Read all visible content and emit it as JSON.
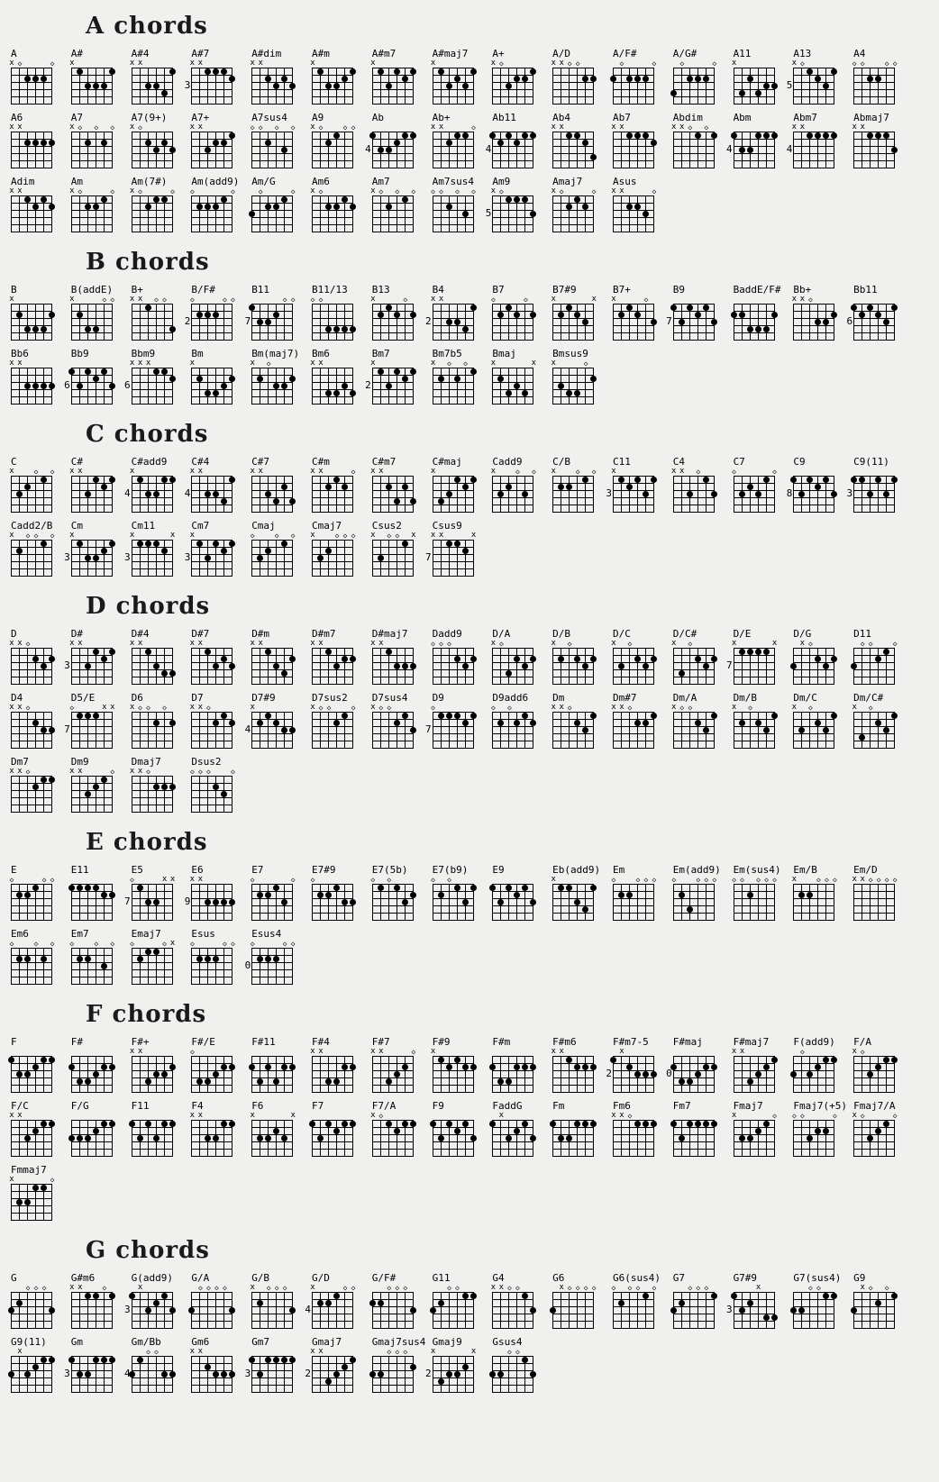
{
  "page": {
    "background_color": "#f0f0ef",
    "ink_color": "#000000",
    "muted_string_symbol": "x",
    "open_string_symbol": "◇",
    "strings_per_diagram": 6,
    "frets_per_diagram": 5
  },
  "sections": [
    {
      "title": "A chords",
      "rows": [
        [
          {
            "n": "A",
            "f": "x02220"
          },
          {
            "n": "A#",
            "f": "x13331"
          },
          {
            "n": "A#4",
            "f": "xx3341"
          },
          {
            "n": "A#7",
            "b": "3",
            "f": "xx1112"
          },
          {
            "n": "A#dim",
            "f": "xx2323"
          },
          {
            "n": "A#m",
            "f": "x13321"
          },
          {
            "n": "A#m7",
            "f": "x13121"
          },
          {
            "n": "A#maj7",
            "f": "x13231"
          },
          {
            "n": "A+",
            "f": "x03221"
          },
          {
            "n": "A/D",
            "f": "xx0022"
          },
          {
            "n": "A/F#",
            "f": "202220"
          },
          {
            "n": "A/G#",
            "f": "402220"
          },
          {
            "n": "A11",
            "f": "x42433"
          },
          {
            "n": "A13",
            "b": "5",
            "f": "x01231"
          },
          {
            "n": "A4",
            "f": "002200"
          }
        ],
        [
          {
            "n": "A6",
            "f": "xx2222"
          },
          {
            "n": "A7",
            "f": "x02020"
          },
          {
            "n": "A7(9+)",
            "f": "x02323"
          },
          {
            "n": "A7+",
            "f": "xx3221"
          },
          {
            "n": "A7sus4",
            "f": "002030"
          },
          {
            "n": "A9",
            "f": "x02100"
          },
          {
            "n": "Ab",
            "b": "4",
            "f": "133211"
          },
          {
            "n": "Ab+",
            "f": "xx2110"
          },
          {
            "n": "Ab11",
            "b": "4",
            "f": "121211"
          },
          {
            "n": "Ab4",
            "f": "xx1124"
          },
          {
            "n": "Ab7",
            "f": "xx1112"
          },
          {
            "n": "Abdim",
            "f": "xx0101"
          },
          {
            "n": "Abm",
            "b": "4",
            "f": "133111"
          },
          {
            "n": "Abm7",
            "b": "4",
            "f": "xx1111"
          },
          {
            "n": "Abmaj7",
            "f": "xx1113"
          }
        ],
        [
          {
            "n": "Adim",
            "f": "xx1212"
          },
          {
            "n": "Am",
            "f": "x02210"
          },
          {
            "n": "Am(7#)",
            "f": "x02110"
          },
          {
            "n": "Am(add9)",
            "f": "022210"
          },
          {
            "n": "Am/G",
            "f": "302210"
          },
          {
            "n": "Am6",
            "f": "x02212"
          },
          {
            "n": "Am7",
            "f": "x02010"
          },
          {
            "n": "Am7sus4",
            "f": "002030"
          },
          {
            "n": "Am9",
            "b": "5",
            "f": "x01113"
          },
          {
            "n": "Amaj7",
            "f": "x02120"
          },
          {
            "n": "Asus",
            "f": "xx2230"
          }
        ]
      ]
    },
    {
      "title": "B chords",
      "rows": [
        [
          {
            "n": "B",
            "f": "x24442"
          },
          {
            "n": "B(addE)",
            "f": "x24400"
          },
          {
            "n": "B+",
            "f": "xx1004"
          },
          {
            "n": "B/F#",
            "b": "2",
            "f": "022200"
          },
          {
            "n": "B11",
            "b": "7",
            "f": "133200"
          },
          {
            "n": "B11/13",
            "f": "004444"
          },
          {
            "n": "B13",
            "f": "x21202"
          },
          {
            "n": "B4",
            "b": "2",
            "f": "xx3341"
          },
          {
            "n": "B7",
            "f": "021202"
          },
          {
            "n": "B7#9",
            "f": "x2123x"
          },
          {
            "n": "B7+",
            "f": "x21203"
          },
          {
            "n": "B9",
            "b": "7",
            "f": "131213"
          },
          {
            "n": "BaddE/F#",
            "f": "224442"
          },
          {
            "n": "Bb+",
            "f": "xx0332"
          },
          {
            "n": "Bb11",
            "b": "6",
            "f": "121231"
          }
        ],
        [
          {
            "n": "Bb6",
            "f": "xx3333"
          },
          {
            "n": "Bb9",
            "b": "6",
            "f": "131213"
          },
          {
            "n": "Bbm9",
            "b": "6",
            "f": "xxx112"
          },
          {
            "n": "Bm",
            "f": "x24432"
          },
          {
            "n": "Bm(maj7)",
            "f": "x20332"
          },
          {
            "n": "Bm6",
            "f": "xx4434"
          },
          {
            "n": "Bm7",
            "b": "2",
            "f": "x13121"
          },
          {
            "n": "Bm7b5",
            "f": "x20201"
          },
          {
            "n": "Bmaj",
            "f": "x2434x"
          },
          {
            "n": "Bmsus9",
            "f": "x34402"
          }
        ]
      ]
    },
    {
      "title": "C chords",
      "rows": [
        [
          {
            "n": "C",
            "f": "x32010"
          },
          {
            "n": "C#",
            "f": "xx3121"
          },
          {
            "n": "C#add9",
            "b": "4",
            "f": "x13311"
          },
          {
            "n": "C#4",
            "b": "4",
            "f": "xx3341"
          },
          {
            "n": "C#7",
            "f": "xx3424"
          },
          {
            "n": "C#m",
            "f": "xx2120"
          },
          {
            "n": "C#m7",
            "f": "xx2424"
          },
          {
            "n": "C#maj",
            "f": "x43121"
          },
          {
            "n": "Cadd9",
            "f": "x32030"
          },
          {
            "n": "C/B",
            "f": "x22010"
          },
          {
            "n": "C11",
            "b": "3",
            "f": "x12131"
          },
          {
            "n": "C4",
            "f": "xx3013"
          },
          {
            "n": "C7",
            "f": "032310"
          },
          {
            "n": "C9",
            "b": "8",
            "f": "131213"
          },
          {
            "n": "C9(11)",
            "b": "3",
            "f": "113131"
          }
        ],
        [
          {
            "n": "Cadd2/B",
            "f": "x20010"
          },
          {
            "n": "Cm",
            "b": "3",
            "f": "x13321"
          },
          {
            "n": "Cm11",
            "b": "3",
            "f": "x1112x"
          },
          {
            "n": "Cm7",
            "b": "3",
            "f": "x13121"
          },
          {
            "n": "Cmaj",
            "f": "032010"
          },
          {
            "n": "Cmaj7",
            "f": "x32000"
          },
          {
            "n": "Csus2",
            "f": "x3001x"
          },
          {
            "n": "Csus9",
            "b": "7",
            "f": "xx112x"
          }
        ]
      ]
    },
    {
      "title": "D chords",
      "rows": [
        [
          {
            "n": "D",
            "f": "xx0232"
          },
          {
            "n": "D#",
            "b": "3",
            "f": "xx3121"
          },
          {
            "n": "D#4",
            "f": "xx1344"
          },
          {
            "n": "D#7",
            "f": "xx1323"
          },
          {
            "n": "D#m",
            "f": "xx1342"
          },
          {
            "n": "D#m7",
            "f": "xx1322"
          },
          {
            "n": "D#maj7",
            "f": "xx1333"
          },
          {
            "n": "Dadd9",
            "f": "000232"
          },
          {
            "n": "D/A",
            "f": "x04232"
          },
          {
            "n": "D/B",
            "f": "x20232"
          },
          {
            "n": "D/C",
            "f": "x30232"
          },
          {
            "n": "D/C#",
            "f": "x40232"
          },
          {
            "n": "D/E",
            "b": "7",
            "f": "x1111x"
          },
          {
            "n": "D/G",
            "f": "3x0232"
          },
          {
            "n": "D11",
            "f": "300210"
          }
        ],
        [
          {
            "n": "D4",
            "f": "xx0233"
          },
          {
            "n": "D5/E",
            "b": "7",
            "f": "0111xx"
          },
          {
            "n": "D6",
            "f": "x00202"
          },
          {
            "n": "D7",
            "f": "xx0212"
          },
          {
            "n": "D7#9",
            "b": "4",
            "f": "x21233"
          },
          {
            "n": "D7sus2",
            "f": "x00210"
          },
          {
            "n": "D7sus4",
            "f": "x00213"
          },
          {
            "n": "D9",
            "b": "7",
            "f": "011121"
          },
          {
            "n": "D9add6",
            "f": "020212"
          },
          {
            "n": "Dm",
            "f": "xx0231"
          },
          {
            "n": "Dm#7",
            "f": "xx0221"
          },
          {
            "n": "Dm/A",
            "f": "x00231"
          },
          {
            "n": "Dm/B",
            "f": "x20231"
          },
          {
            "n": "Dm/C",
            "f": "x30231"
          },
          {
            "n": "Dm/C#",
            "f": "x40231"
          }
        ],
        [
          {
            "n": "Dm7",
            "f": "xx0211"
          },
          {
            "n": "Dm9",
            "f": "xx3210"
          },
          {
            "n": "Dmaj7",
            "f": "xx0222"
          },
          {
            "n": "Dsus2",
            "f": "000230"
          }
        ]
      ]
    },
    {
      "title": "E chords",
      "rows": [
        [
          {
            "n": "E",
            "f": "022100"
          },
          {
            "n": "E11",
            "f": "111122"
          },
          {
            "n": "E5",
            "b": "7",
            "f": "0133xx"
          },
          {
            "n": "E6",
            "b": "9",
            "f": "xx3333"
          },
          {
            "n": "E7",
            "f": "022130"
          },
          {
            "n": "E7#9",
            "f": "022133"
          },
          {
            "n": "E7(5b)",
            "f": "010132"
          },
          {
            "n": "E7(b9)",
            "f": "020131"
          },
          {
            "n": "E9",
            "f": "131213"
          },
          {
            "n": "Eb(add9)",
            "f": "x11341"
          },
          {
            "n": "Em",
            "f": "022000"
          },
          {
            "n": "Em(add9)",
            "f": "024000"
          },
          {
            "n": "Em(sus4)",
            "f": "002000"
          },
          {
            "n": "Em/B",
            "f": "x22000"
          },
          {
            "n": "Em/D",
            "f": "xx0000"
          }
        ],
        [
          {
            "n": "Em6",
            "f": "022020"
          },
          {
            "n": "Em7",
            "f": "022030"
          },
          {
            "n": "Emaj7",
            "f": "02110x"
          },
          {
            "n": "Esus",
            "f": "022200"
          },
          {
            "n": "Esus4",
            "b": "0",
            "f": "022200"
          }
        ]
      ]
    },
    {
      "title": "F chords",
      "rows": [
        [
          {
            "n": "F",
            "f": "133211"
          },
          {
            "n": "F#",
            "f": "244322"
          },
          {
            "n": "F#+",
            "f": "xx4332"
          },
          {
            "n": "F#/E",
            "f": "044322"
          },
          {
            "n": "F#11",
            "f": "242422"
          },
          {
            "n": "F#4",
            "f": "xx4422"
          },
          {
            "n": "F#7",
            "f": "xx4320"
          },
          {
            "n": "F#9",
            "f": "x12122"
          },
          {
            "n": "F#m",
            "f": "244222"
          },
          {
            "n": "F#m6",
            "f": "xx1222"
          },
          {
            "n": "F#m7-5",
            "b": "2",
            "f": "1x2333"
          },
          {
            "n": "F#maj",
            "b": "0",
            "f": "244322"
          },
          {
            "n": "F#maj7",
            "f": "xx4321"
          },
          {
            "n": "F(add9)",
            "f": "303211"
          },
          {
            "n": "F/A",
            "f": "x03211"
          }
        ],
        [
          {
            "n": "F/C",
            "f": "xx3211"
          },
          {
            "n": "F/G",
            "f": "333211"
          },
          {
            "n": "F11",
            "f": "131311"
          },
          {
            "n": "F4",
            "f": "xx3311"
          },
          {
            "n": "F6",
            "f": "x3323x"
          },
          {
            "n": "F7",
            "f": "131211"
          },
          {
            "n": "F7/A",
            "f": "x01211"
          },
          {
            "n": "F9",
            "f": "131213"
          },
          {
            "n": "FaddG",
            "f": "1x3213"
          },
          {
            "n": "Fm",
            "f": "133111"
          },
          {
            "n": "Fm6",
            "f": "xx0111"
          },
          {
            "n": "Fm7",
            "f": "131111"
          },
          {
            "n": "Fmaj7",
            "f": "x33210"
          },
          {
            "n": "Fmaj7(+5)",
            "f": "003220"
          },
          {
            "n": "Fmaj7/A",
            "f": "x03210"
          }
        ],
        [
          {
            "n": "Fmmaj7",
            "f": "x33110"
          }
        ]
      ]
    },
    {
      "title": "G chords",
      "rows": [
        [
          {
            "n": "G",
            "f": "320003"
          },
          {
            "n": "G#m6",
            "f": "xx1101"
          },
          {
            "n": "G(add9)",
            "b": "3",
            "f": "1x3213"
          },
          {
            "n": "G/A",
            "f": "300003"
          },
          {
            "n": "G/B",
            "f": "x20003"
          },
          {
            "n": "G/D",
            "b": "4",
            "f": "x22100"
          },
          {
            "n": "G/F#",
            "f": "220003"
          },
          {
            "n": "G11",
            "f": "320011"
          },
          {
            "n": "G4",
            "f": "xx0013"
          },
          {
            "n": "G6",
            "f": "3x0000"
          },
          {
            "n": "G6(sus4)",
            "f": "020010"
          },
          {
            "n": "G7",
            "f": "320001"
          },
          {
            "n": "G7#9",
            "b": "3",
            "f": "132x44"
          },
          {
            "n": "G7(sus4)",
            "f": "330011"
          },
          {
            "n": "G9",
            "f": "3x0201"
          }
        ],
        [
          {
            "n": "G9(11)",
            "f": "3x3211"
          },
          {
            "n": "Gm",
            "b": "3",
            "f": "133111"
          },
          {
            "n": "Gm/Bb",
            "b": "4",
            "f": "310033"
          },
          {
            "n": "Gm6",
            "f": "xx2333"
          },
          {
            "n": "Gm7",
            "b": "3",
            "f": "131111"
          },
          {
            "n": "Gmaj7",
            "b": "2",
            "f": "xx4321"
          },
          {
            "n": "Gmaj7sus4",
            "f": "330002"
          },
          {
            "n": "Gmaj9",
            "b": "2",
            "f": "x4332x"
          },
          {
            "n": "Gsus4",
            "f": "330013"
          }
        ]
      ]
    }
  ]
}
